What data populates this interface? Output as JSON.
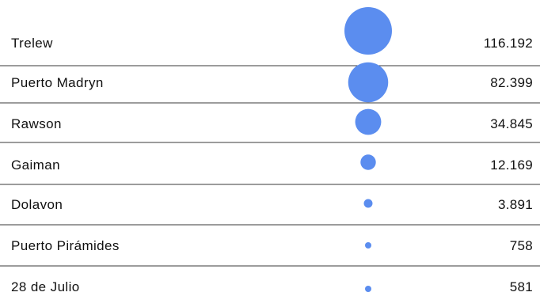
{
  "chart_data": {
    "type": "table",
    "title": "",
    "columns": [
      "",
      "",
      ""
    ],
    "categories": [
      "Trelew",
      "Puerto Madryn",
      "Rawson",
      "Gaiman",
      "Dolavon",
      "Puerto Pirámides",
      "28 de Julio"
    ],
    "values": [
      116192,
      82399,
      34845,
      12169,
      3891,
      758,
      581
    ],
    "value_labels": [
      "116.192",
      "82.399",
      "34.845",
      "12.169",
      "3.891",
      "758",
      "581"
    ],
    "encoding": "bubble",
    "bubble_color": "#5b8def"
  }
}
